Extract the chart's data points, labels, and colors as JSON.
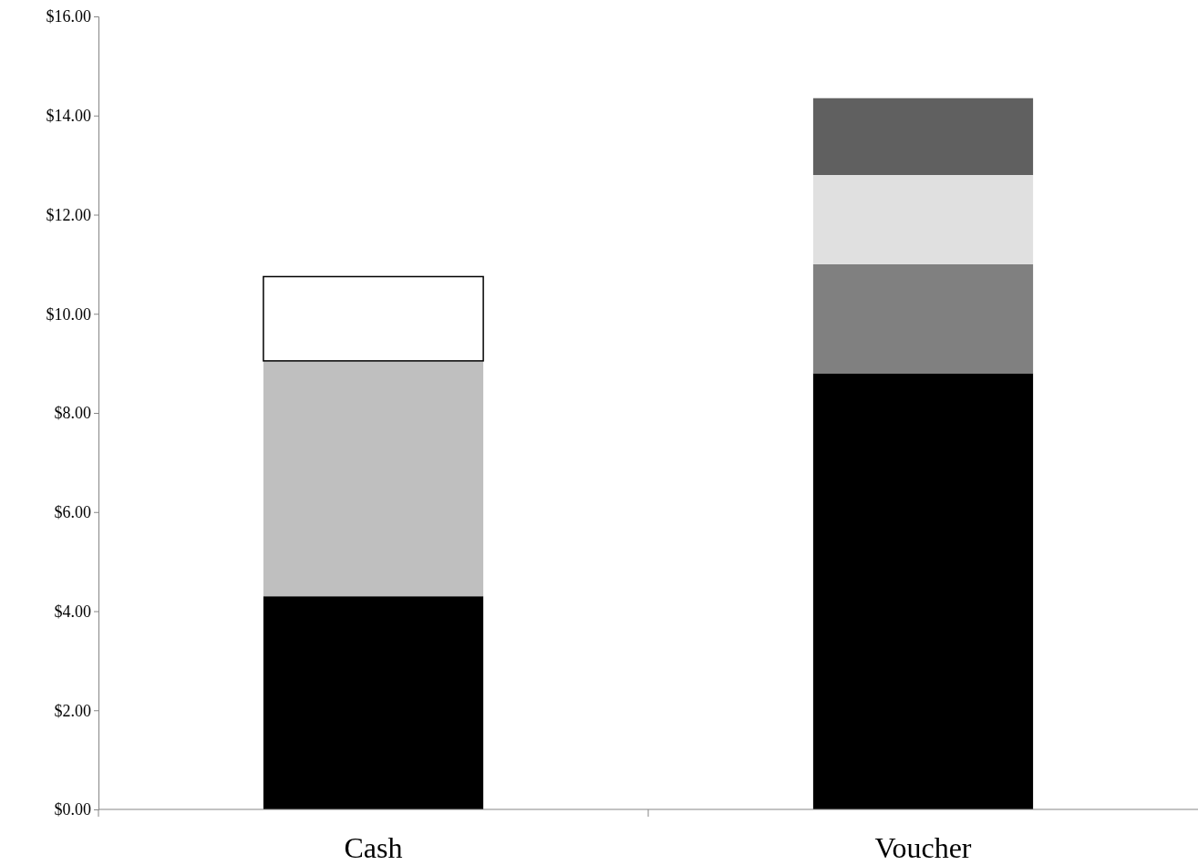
{
  "chart_data": {
    "type": "bar",
    "stacked": true,
    "categories": [
      "Cash",
      "Voucher"
    ],
    "series": [
      {
        "color": "#000000",
        "values": [
          4.3,
          8.8
        ]
      },
      {
        "color": "#bfbfbf",
        "values": [
          4.75,
          null
        ]
      },
      {
        "color": "#ffffff",
        "values": [
          1.7,
          null
        ]
      },
      {
        "color": "#808080",
        "values": [
          null,
          2.2
        ]
      },
      {
        "color": "#e0e0e0",
        "values": [
          null,
          1.8
        ]
      },
      {
        "color": "#606060",
        "values": [
          null,
          1.55
        ]
      }
    ],
    "ylim": [
      0,
      16
    ],
    "yticks": [
      {
        "value": 0,
        "label": "$0.00"
      },
      {
        "value": 2,
        "label": "$2.00"
      },
      {
        "value": 4,
        "label": "$4.00"
      },
      {
        "value": 6,
        "label": "$6.00"
      },
      {
        "value": 8,
        "label": "$8.00"
      },
      {
        "value": 10,
        "label": "$10.00"
      },
      {
        "value": 12,
        "label": "$12.00"
      },
      {
        "value": 14,
        "label": "$14.00"
      },
      {
        "value": 16,
        "label": "$16.00"
      }
    ],
    "grid": false
  }
}
